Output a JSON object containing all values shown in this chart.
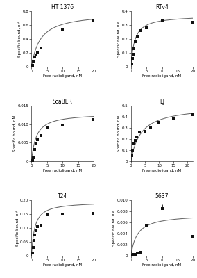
{
  "panels": [
    {
      "title": "HT 1376",
      "Bmax": 0.78,
      "Kd": 2.8,
      "points_x": [
        0.25,
        0.5,
        1.0,
        1.5,
        2.0,
        3.0,
        10.0,
        20.0
      ],
      "points_y": [
        0.02,
        0.07,
        0.14,
        0.17,
        0.2,
        0.27,
        0.54,
        0.67
      ],
      "err_y": [
        null,
        null,
        null,
        null,
        null,
        null,
        null,
        0.09
      ],
      "ylim": [
        0,
        0.8
      ],
      "yticks": [
        0.0,
        0.2,
        0.4,
        0.6,
        0.8
      ],
      "ytick_labels": [
        "0",
        "0.2",
        "0.4",
        "0.6",
        "0.8"
      ],
      "xlim": [
        0,
        20
      ],
      "xticks": [
        0,
        5,
        10,
        15,
        20
      ]
    },
    {
      "title": "RTv4",
      "Bmax": 0.37,
      "Kd": 1.2,
      "points_x": [
        0.25,
        0.5,
        0.75,
        1.0,
        1.5,
        2.0,
        3.0,
        5.0,
        10.0,
        20.0
      ],
      "points_y": [
        0.02,
        0.06,
        0.09,
        0.13,
        0.18,
        0.22,
        0.26,
        0.28,
        0.33,
        0.32
      ],
      "err_y": [
        null,
        null,
        null,
        null,
        null,
        null,
        null,
        null,
        0.013,
        null
      ],
      "ylim": [
        0,
        0.4
      ],
      "yticks": [
        0.0,
        0.1,
        0.2,
        0.3,
        0.4
      ],
      "ytick_labels": [
        "0",
        "0.1",
        "0.2",
        "0.3",
        "0.4"
      ],
      "xlim": [
        0,
        20
      ],
      "xticks": [
        0,
        5,
        10,
        15,
        20
      ]
    },
    {
      "title": "ScaBER",
      "Bmax": 0.013,
      "Kd": 1.5,
      "points_x": [
        0.25,
        0.5,
        1.0,
        1.5,
        2.0,
        3.0,
        5.0,
        10.0,
        20.0
      ],
      "points_y": [
        0.0002,
        0.001,
        0.0032,
        0.0048,
        0.0058,
        0.007,
        0.009,
        0.0098,
        0.0112
      ],
      "err_y": [
        null,
        null,
        null,
        null,
        null,
        null,
        null,
        null,
        0.001
      ],
      "ylim": [
        0,
        0.015
      ],
      "yticks": [
        0.0,
        0.005,
        0.01,
        0.015
      ],
      "ytick_labels": [
        "0",
        "0.005",
        "0.010",
        "0.015"
      ],
      "xlim": [
        0,
        20
      ],
      "xticks": [
        0,
        5,
        10,
        15,
        20
      ]
    },
    {
      "title": "EJ",
      "Bmax": 0.5,
      "Kd": 3.5,
      "points_x": [
        0.25,
        0.5,
        1.0,
        1.5,
        2.0,
        3.0,
        5.0,
        7.0,
        10.0,
        15.0,
        22.0
      ],
      "points_y": [
        0.05,
        0.1,
        0.16,
        0.19,
        0.22,
        0.26,
        0.27,
        0.3,
        0.35,
        0.38,
        0.42
      ],
      "err_y": [
        null,
        null,
        null,
        null,
        null,
        null,
        null,
        null,
        null,
        null,
        0.016
      ],
      "ylim": [
        0,
        0.5
      ],
      "yticks": [
        0.0,
        0.1,
        0.2,
        0.3,
        0.4,
        0.5
      ],
      "ytick_labels": [
        "0",
        "0.1",
        "0.2",
        "0.3",
        "0.4",
        "0.5"
      ],
      "xlim": [
        0,
        22
      ],
      "xticks": [
        0,
        5,
        10,
        15,
        20
      ]
    },
    {
      "title": "T24",
      "Bmax": 0.195,
      "Kd": 1.0,
      "points_x": [
        0.25,
        0.5,
        0.75,
        1.0,
        1.5,
        2.0,
        3.0,
        5.0,
        10.0,
        20.0
      ],
      "points_y": [
        0.01,
        0.03,
        0.055,
        0.075,
        0.09,
        0.105,
        0.108,
        0.148,
        0.15,
        0.152
      ],
      "err_y": [
        null,
        null,
        null,
        null,
        null,
        null,
        null,
        null,
        null,
        null
      ],
      "ylim": [
        0,
        0.2
      ],
      "yticks": [
        0.0,
        0.05,
        0.1,
        0.15,
        0.2
      ],
      "ytick_labels": [
        "0",
        "0.05",
        "0.10",
        "0.15",
        "0.20"
      ],
      "xlim": [
        0,
        20
      ],
      "xticks": [
        0,
        5,
        10,
        15,
        20
      ]
    },
    {
      "title": "5637",
      "Bmax": 0.0075,
      "Kd": 2.0,
      "points_x": [
        0.5,
        1.0,
        1.5,
        2.0,
        3.0,
        5.0,
        10.0,
        20.0
      ],
      "points_y": [
        0.0001,
        0.0002,
        0.0003,
        0.0005,
        0.0006,
        0.0055,
        0.0085,
        0.0035
      ],
      "err_y": [
        null,
        null,
        null,
        null,
        null,
        null,
        0.0008,
        null
      ],
      "ylim": [
        0,
        0.01
      ],
      "yticks": [
        0.0,
        0.002,
        0.004,
        0.006,
        0.008,
        0.01
      ],
      "ytick_labels": [
        "0",
        "0.002",
        "0.004",
        "0.006",
        "0.008",
        "0.010"
      ],
      "xlim": [
        0,
        20
      ],
      "xticks": [
        0,
        5,
        10,
        15,
        20
      ]
    }
  ],
  "xlabel": "Free radioligand, nM",
  "ylabel": "Specific bound, nM",
  "point_color": "#111111",
  "line_color": "#666666"
}
